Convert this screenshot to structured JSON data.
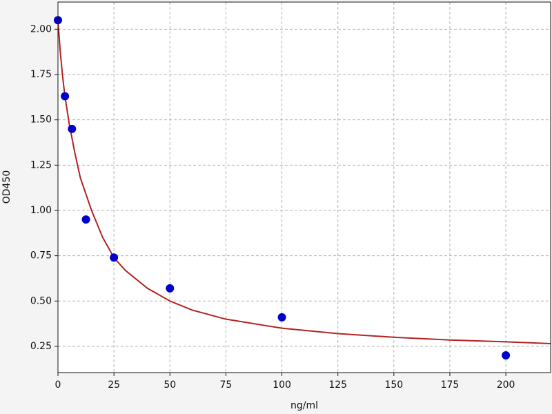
{
  "chart_data": {
    "type": "scatter",
    "x_label": "ng/ml",
    "y_label": "OD450",
    "xlim": [
      0,
      220
    ],
    "ylim": [
      0.105,
      2.15
    ],
    "xticks": [
      0,
      25,
      50,
      75,
      100,
      125,
      150,
      175,
      200
    ],
    "yticks": [
      0.25,
      {
        "value": 0.5,
        "label": "0.50"
      },
      0.75,
      {
        "value": 1,
        "label": "1.00"
      },
      1.25,
      {
        "value": 1.5,
        "label": "1.50"
      },
      1.75,
      {
        "value": 2,
        "label": "2.00"
      }
    ],
    "grid": true,
    "series": [
      {
        "mode": "markers",
        "color": "#0000cc",
        "x": [
          0,
          3.125,
          6.25,
          12.5,
          25,
          50,
          100,
          200
        ],
        "values": [
          2.05,
          1.63,
          1.45,
          0.95,
          0.74,
          0.57,
          0.41,
          0.2
        ]
      },
      {
        "mode": "line",
        "color": "#b22222",
        "x": [
          0,
          1,
          2,
          3,
          5,
          7.5,
          10,
          15,
          20,
          25,
          30,
          40,
          50,
          60,
          75,
          100,
          125,
          150,
          175,
          200,
          220
        ],
        "values": [
          2.05,
          1.88,
          1.75,
          1.64,
          1.48,
          1.32,
          1.18,
          1.0,
          0.85,
          0.74,
          0.67,
          0.57,
          0.5,
          0.45,
          0.4,
          0.35,
          0.32,
          0.3,
          0.285,
          0.275,
          0.265
        ]
      }
    ]
  }
}
